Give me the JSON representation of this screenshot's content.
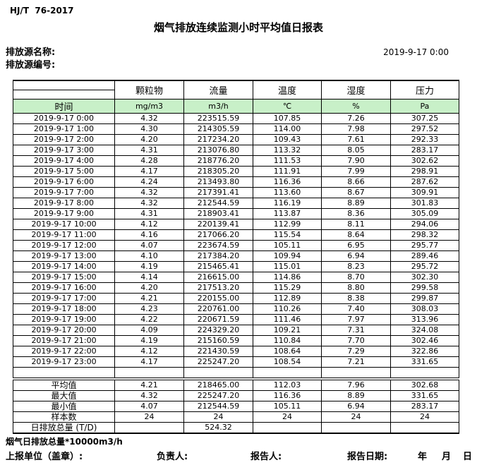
{
  "standard_code": "HJ/T  76-2017",
  "title": "烟气排放连续监测小时平均值日报表",
  "meta": {
    "source_name_label": "排放源名称:",
    "source_id_label": "排放源编号:",
    "datetime": "2019-9-17 0:00"
  },
  "table": {
    "time_label": "时间",
    "columns": [
      "颗粒物",
      "流量",
      "温度",
      "湿度",
      "压力"
    ],
    "units": [
      "mg/m3",
      "m3/h",
      "℃",
      "%",
      "Pa"
    ],
    "rows": [
      {
        "time": "2019-9-17 0:00",
        "values": [
          "4.32",
          "223515.59",
          "107.85",
          "7.26",
          "307.25"
        ]
      },
      {
        "time": "2019-9-17 1:00",
        "values": [
          "4.30",
          "214305.59",
          "114.00",
          "7.98",
          "297.52"
        ]
      },
      {
        "time": "2019-9-17 2:00",
        "values": [
          "4.20",
          "217234.20",
          "109.43",
          "7.61",
          "292.33"
        ]
      },
      {
        "time": "2019-9-17 3:00",
        "values": [
          "4.31",
          "213076.80",
          "113.32",
          "8.05",
          "283.17"
        ]
      },
      {
        "time": "2019-9-17 4:00",
        "values": [
          "4.28",
          "218776.20",
          "111.53",
          "7.90",
          "302.62"
        ]
      },
      {
        "time": "2019-9-17 5:00",
        "values": [
          "4.17",
          "218305.20",
          "111.91",
          "7.99",
          "298.91"
        ]
      },
      {
        "time": "2019-9-17 6:00",
        "values": [
          "4.24",
          "213493.80",
          "116.36",
          "8.66",
          "287.62"
        ]
      },
      {
        "time": "2019-9-17 7:00",
        "values": [
          "4.32",
          "217391.41",
          "113.60",
          "8.67",
          "309.91"
        ]
      },
      {
        "time": "2019-9-17 8:00",
        "values": [
          "4.32",
          "212544.59",
          "116.19",
          "8.89",
          "301.83"
        ]
      },
      {
        "time": "2019-9-17 9:00",
        "values": [
          "4.31",
          "218903.41",
          "113.87",
          "8.36",
          "305.09"
        ]
      },
      {
        "time": "2019-9-17 10:00",
        "values": [
          "4.12",
          "220139.41",
          "112.99",
          "8.11",
          "294.06"
        ]
      },
      {
        "time": "2019-9-17 11:00",
        "values": [
          "4.16",
          "217066.20",
          "115.54",
          "8.64",
          "298.32"
        ]
      },
      {
        "time": "2019-9-17 12:00",
        "values": [
          "4.07",
          "223674.59",
          "105.11",
          "6.95",
          "295.77"
        ]
      },
      {
        "time": "2019-9-17 13:00",
        "values": [
          "4.10",
          "217384.20",
          "109.94",
          "6.94",
          "289.46"
        ]
      },
      {
        "time": "2019-9-17 14:00",
        "values": [
          "4.19",
          "215465.41",
          "115.01",
          "8.23",
          "295.72"
        ]
      },
      {
        "time": "2019-9-17 15:00",
        "values": [
          "4.14",
          "216615.00",
          "114.86",
          "8.70",
          "302.30"
        ]
      },
      {
        "time": "2019-9-17 16:00",
        "values": [
          "4.20",
          "217513.20",
          "115.29",
          "8.80",
          "299.58"
        ]
      },
      {
        "time": "2019-9-17 17:00",
        "values": [
          "4.21",
          "220155.00",
          "112.89",
          "8.38",
          "299.87"
        ]
      },
      {
        "time": "2019-9-17 18:00",
        "values": [
          "4.23",
          "220761.00",
          "110.26",
          "7.40",
          "308.03"
        ]
      },
      {
        "time": "2019-9-17 19:00",
        "values": [
          "4.22",
          "220671.59",
          "111.46",
          "7.97",
          "313.96"
        ]
      },
      {
        "time": "2019-9-17 20:00",
        "values": [
          "4.09",
          "224329.20",
          "109.21",
          "7.31",
          "324.08"
        ]
      },
      {
        "time": "2019-9-17 21:00",
        "values": [
          "4.19",
          "215160.59",
          "110.84",
          "7.70",
          "302.46"
        ]
      },
      {
        "time": "2019-9-17 22:00",
        "values": [
          "4.12",
          "221430.59",
          "108.64",
          "7.29",
          "322.86"
        ]
      },
      {
        "time": "2019-9-17 23:00",
        "values": [
          "4.17",
          "225247.20",
          "108.54",
          "7.21",
          "331.65"
        ]
      }
    ],
    "summary": [
      {
        "label": "平均值",
        "values": [
          "4.21",
          "218465.00",
          "112.03",
          "7.96",
          "302.68"
        ]
      },
      {
        "label": "最大值",
        "values": [
          "4.32",
          "225247.20",
          "116.36",
          "8.89",
          "331.65"
        ]
      },
      {
        "label": "最小值",
        "values": [
          "4.07",
          "212544.59",
          "105.11",
          "6.94",
          "283.17"
        ]
      },
      {
        "label": "样本数",
        "values": [
          "24",
          "24",
          "24",
          "24",
          "24"
        ]
      },
      {
        "label": "日排放总量 (T/D)",
        "values": [
          "",
          "524.32",
          "",
          "",
          ""
        ]
      }
    ]
  },
  "footer": {
    "note": "烟气日排放总量*10000m3/h",
    "report_unit_label": "上报单位（盖章）:",
    "responsible_label": "负责人:",
    "reporter_label": "报告人:",
    "report_date_label": "报告日期:",
    "year_label": "年",
    "month_label": "月",
    "day_label": "日"
  },
  "colors": {
    "band_green": "#c8f0c8",
    "border": "#000000",
    "text": "#000000"
  }
}
